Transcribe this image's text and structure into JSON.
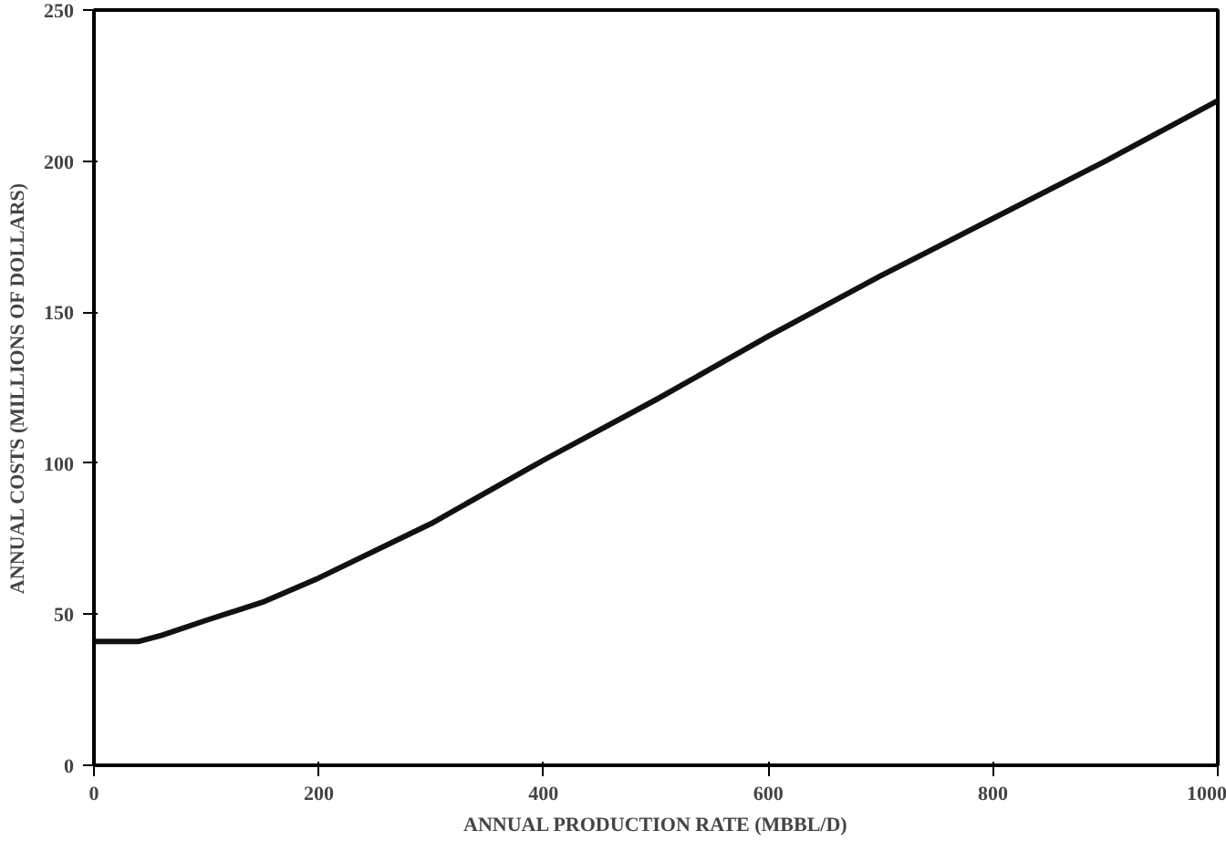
{
  "chart_data": {
    "type": "line",
    "xlabel": "ANNUAL PRODUCTION RATE (MBBL/D)",
    "ylabel": "ANNUAL COSTS (MILLIONS OF DOLLARS)",
    "x": [
      0,
      40,
      60,
      100,
      150,
      200,
      300,
      400,
      500,
      600,
      700,
      800,
      900,
      1000
    ],
    "series": [
      {
        "color": "#111111",
        "values": [
          41,
          41,
          43,
          48,
          54,
          62,
          80,
          101,
          121,
          142,
          162,
          181,
          200,
          220
        ]
      }
    ],
    "xlim": [
      0,
      1000
    ],
    "ylim": [
      0,
      250
    ],
    "xticks": [
      0,
      200,
      400,
      600,
      800,
      1000
    ],
    "yticks": [
      0,
      50,
      100,
      150,
      200,
      250
    ],
    "grid": false,
    "marker": "none",
    "line_style": "solid"
  }
}
